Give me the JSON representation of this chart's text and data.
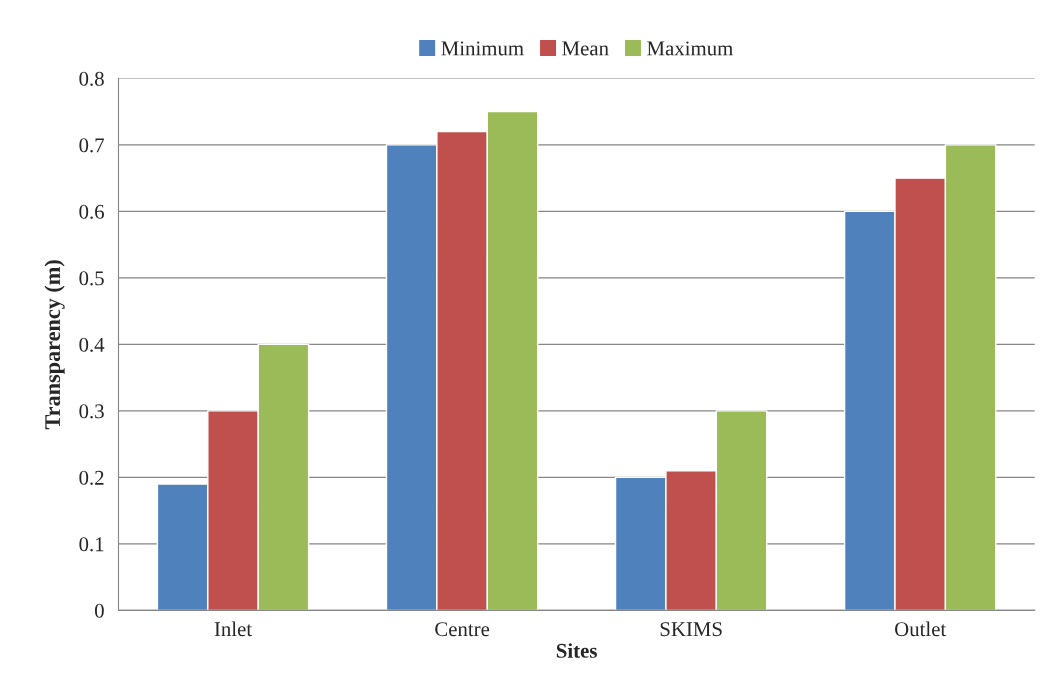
{
  "chart_data": {
    "type": "bar",
    "xlabel": "Sites",
    "ylabel": "Transparency (m)",
    "categories": [
      "Inlet",
      "Centre",
      "SKIMS",
      "Outlet"
    ],
    "series": [
      {
        "name": "Minimum",
        "color": "#4f81bd",
        "values": [
          0.19,
          0.7,
          0.2,
          0.6
        ]
      },
      {
        "name": "Mean",
        "color": "#c0504d",
        "values": [
          0.3,
          0.72,
          0.21,
          0.65
        ]
      },
      {
        "name": "Maximum",
        "color": "#9bbb59",
        "values": [
          0.4,
          0.75,
          0.3,
          0.7
        ]
      }
    ],
    "ylim": [
      0,
      0.8
    ],
    "yticks": [
      0,
      0.1,
      0.2,
      0.3,
      0.4,
      0.5,
      0.6,
      0.7,
      0.8
    ],
    "grid": "y",
    "legend": "top"
  }
}
